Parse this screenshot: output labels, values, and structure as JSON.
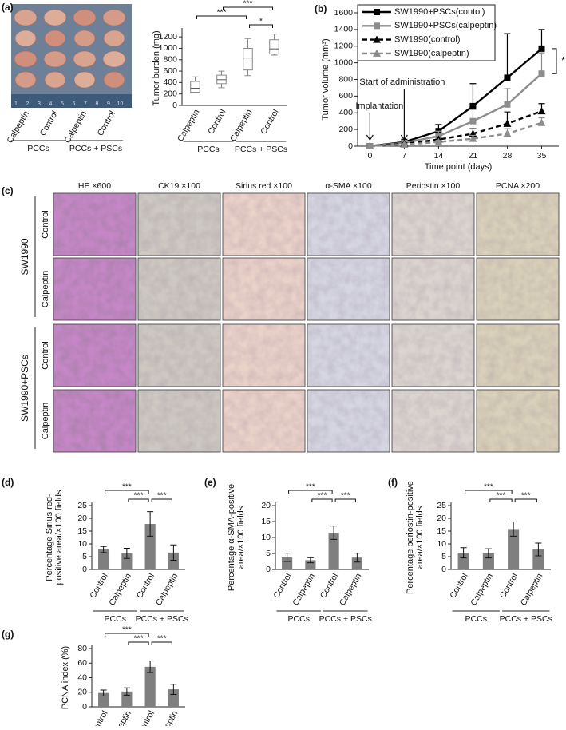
{
  "photo": {
    "panel_label": "(a)",
    "ruler_labels": [
      "1",
      "2",
      "3",
      "4",
      "5",
      "6",
      "7",
      "8",
      "9",
      "10"
    ],
    "categories": [
      "Calpeptin",
      "Control",
      "Calpeptin",
      "Control"
    ],
    "groups": [
      {
        "label": "PCCs",
        "span": [
          0,
          1
        ]
      },
      {
        "label": "PCCs + PSCs",
        "span": [
          2,
          3
        ]
      }
    ]
  },
  "micrographs": {
    "panel_label": "(c)",
    "columns": [
      "HE ×600",
      "CK19 ×100",
      "Sirius red ×100",
      "α-SMA ×100",
      "Periostin ×100",
      "PCNA ×200"
    ],
    "row_groups": [
      {
        "label": "SW1990",
        "rows": [
          "Control",
          "Calpeptin"
        ]
      },
      {
        "label": "SW1990+PSCs",
        "rows": [
          "Control",
          "Calpeptin"
        ]
      }
    ]
  },
  "chart_data": [
    {
      "type": "box",
      "ylabel": [
        "Tumor burden (mg)"
      ],
      "categories": [
        "Calpeptin",
        "Control",
        "Calpeptin",
        "Control"
      ],
      "min": [
        230,
        310,
        520,
        880
      ],
      "q1": [
        230,
        380,
        620,
        900
      ],
      "median": [
        300,
        450,
        830,
        990
      ],
      "q3": [
        420,
        530,
        1000,
        1150
      ],
      "max": [
        500,
        600,
        1170,
        1250
      ],
      "color": "#888888",
      "ylim": [
        0,
        1300
      ],
      "yticks": [
        0,
        200,
        400,
        600,
        800,
        1000,
        1200
      ],
      "groups": [
        {
          "label": "PCCs",
          "span": [
            0,
            1
          ]
        },
        {
          "label": "PCCs + PSCs",
          "span": [
            2,
            3
          ]
        }
      ],
      "significance": [
        {
          "from": 0,
          "to": 2,
          "label": "***"
        },
        {
          "from": 1,
          "to": 3,
          "label": "***"
        },
        {
          "from": 2,
          "to": 3,
          "label": "*"
        }
      ]
    },
    {
      "type": "line",
      "panel_label": "(b)",
      "xlabel": "Time point (days)",
      "ylabel": [
        "Tumor volume (mm³)"
      ],
      "x": [
        0,
        7,
        14,
        21,
        28,
        35
      ],
      "xlim": [
        -2.5,
        38.5
      ],
      "xticks": [
        0,
        7,
        14,
        21,
        28,
        35
      ],
      "ylim": [
        0,
        1600
      ],
      "yticks": [
        0,
        200,
        400,
        600,
        800,
        1000,
        1200,
        1400,
        1600
      ],
      "legend": "top-left",
      "series": [
        {
          "name": "SW1990+PSCs(contol)",
          "color": "#000000",
          "marker": "square",
          "dashed": false,
          "values": [
            0,
            50,
            180,
            480,
            820,
            1170
          ],
          "errors": [
            0,
            20,
            80,
            270,
            530,
            230
          ]
        },
        {
          "name": "SW1990+PSCs(calpeptin)",
          "color": "#8c8c8c",
          "marker": "square",
          "dashed": false,
          "values": [
            0,
            40,
            120,
            300,
            500,
            870
          ],
          "errors": [
            0,
            15,
            60,
            140,
            190,
            250
          ]
        },
        {
          "name": "SW1990(control)",
          "color": "#000000",
          "marker": "triangle",
          "dashed": true,
          "values": [
            0,
            30,
            80,
            150,
            270,
            420
          ],
          "errors": [
            0,
            10,
            30,
            60,
            140,
            90
          ]
        },
        {
          "name": "SW1990(calpeptin)",
          "color": "#8c8c8c",
          "marker": "triangle",
          "dashed": true,
          "values": [
            0,
            20,
            50,
            90,
            150,
            280
          ],
          "errors": [
            0,
            10,
            20,
            40,
            60,
            60
          ]
        }
      ],
      "annotations": [
        {
          "text": "Implantation",
          "x": 0
        },
        {
          "text": "Start of administration",
          "x": 7
        }
      ],
      "significance": [
        {
          "label": "*",
          "series": [
            0,
            1
          ]
        }
      ]
    },
    {
      "type": "bar",
      "panel_label": "(d)",
      "ylabel": [
        "Percentage Sirius red-",
        "positive area/×100 fields"
      ],
      "categories": [
        "Control",
        "Calpeptin",
        "Control",
        "Calpeptin"
      ],
      "values": [
        7.8,
        6.3,
        17.8,
        6.6
      ],
      "errors": [
        1.2,
        2,
        4.8,
        3
      ],
      "color": "#7f7f7f",
      "ylim": [
        0,
        25
      ],
      "yticks": [
        0,
        5,
        10,
        15,
        20,
        25
      ],
      "groups": [
        {
          "label": "PCCs",
          "span": [
            0,
            1
          ]
        },
        {
          "label": "PCCs + PSCs",
          "span": [
            2,
            3
          ]
        }
      ],
      "significance": [
        {
          "from": 0,
          "to": 2,
          "label": "***"
        },
        {
          "from": 1,
          "to": 2,
          "label": "***"
        },
        {
          "from": 2,
          "to": 3,
          "label": "***"
        }
      ]
    },
    {
      "type": "bar",
      "panel_label": "(e)",
      "ylabel": [
        "Percentage α-SMA-positive",
        "area/×100 fields"
      ],
      "categories": [
        "Control",
        "Calpeptin",
        "Control",
        "Calpeptin"
      ],
      "values": [
        3.8,
        2.9,
        11.5,
        3.7
      ],
      "errors": [
        1.3,
        0.8,
        2.1,
        1.4
      ],
      "color": "#7f7f7f",
      "ylim": [
        0,
        20
      ],
      "yticks": [
        0,
        5,
        10,
        15,
        20
      ],
      "groups": [
        {
          "label": "PCCs",
          "span": [
            0,
            1
          ]
        },
        {
          "label": "PCCs + PSCs",
          "span": [
            2,
            3
          ]
        }
      ],
      "significance": [
        {
          "from": 0,
          "to": 2,
          "label": "***"
        },
        {
          "from": 1,
          "to": 2,
          "label": "***"
        },
        {
          "from": 2,
          "to": 3,
          "label": "***"
        }
      ]
    },
    {
      "type": "bar",
      "panel_label": "(f)",
      "ylabel": [
        "Percentage periostin-positive",
        "area/×100 fields"
      ],
      "categories": [
        "Control",
        "Calpeptin",
        "Control",
        "Calpeptin"
      ],
      "values": [
        6.5,
        6.3,
        15.8,
        7.8
      ],
      "errors": [
        2,
        1.8,
        2.8,
        2.5
      ],
      "color": "#7f7f7f",
      "ylim": [
        0,
        25
      ],
      "yticks": [
        0,
        5,
        10,
        15,
        20,
        25
      ],
      "groups": [
        {
          "label": "PCCs",
          "span": [
            0,
            1
          ]
        },
        {
          "label": "PCCs + PSCs",
          "span": [
            2,
            3
          ]
        }
      ],
      "significance": [
        {
          "from": 0,
          "to": 2,
          "label": "***"
        },
        {
          "from": 1,
          "to": 2,
          "label": "***"
        },
        {
          "from": 2,
          "to": 3,
          "label": "***"
        }
      ]
    },
    {
      "type": "bar",
      "panel_label": "(g)",
      "ylabel": [
        "PCNA index (%)"
      ],
      "categories": [
        "Control",
        "Calpeptin",
        "Control",
        "Calpeptin"
      ],
      "values": [
        19,
        21,
        55,
        24
      ],
      "errors": [
        4,
        5,
        8,
        7
      ],
      "color": "#7f7f7f",
      "ylim": [
        0,
        80
      ],
      "yticks": [
        0,
        20,
        40,
        60,
        80
      ],
      "significance": [
        {
          "from": 0,
          "to": 2,
          "label": "***"
        },
        {
          "from": 1,
          "to": 2,
          "label": "***"
        },
        {
          "from": 2,
          "to": 3,
          "label": "***"
        }
      ]
    }
  ]
}
